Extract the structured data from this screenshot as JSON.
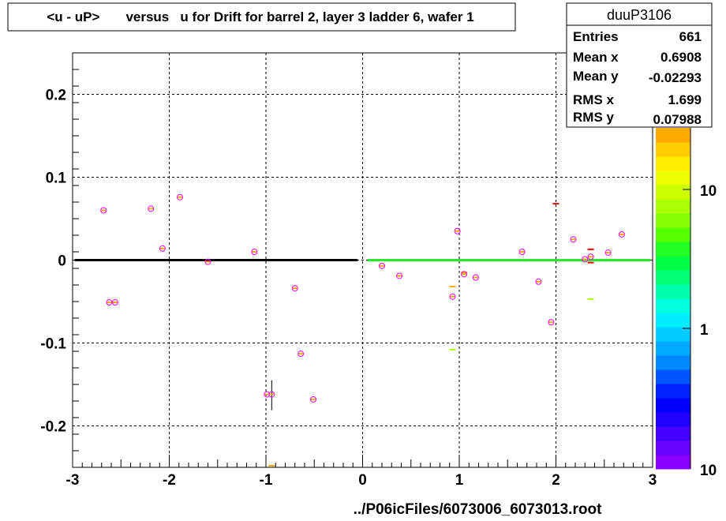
{
  "title": "<u - uP>       versus   u for Drift for barrel 2, layer 3 ladder 6, wafer 1",
  "footer": "../P06icFiles/6073006_6073013.root",
  "stats": {
    "name": "duuP3106",
    "rows": [
      {
        "label": "Entries",
        "value": "661"
      },
      {
        "label": "Mean x",
        "value": "0.6908"
      },
      {
        "label": "Mean y",
        "value": "-0.02293"
      },
      {
        "label": "RMS x",
        "value": "1.699"
      },
      {
        "label": "RMS y",
        "value": "0.07988"
      }
    ]
  },
  "palette": {
    "marker": "#ff00ff",
    "inner": "#ffaa00",
    "profile_left": "#000000",
    "profile_right": "#22ee22"
  },
  "chart_data": {
    "type": "scatter",
    "xlim": [
      -3,
      3
    ],
    "ylim": [
      -0.25,
      0.25
    ],
    "x_ticks": [
      -3,
      -2,
      -1,
      0,
      1,
      2,
      3
    ],
    "x_tick_labels": [
      "-3",
      "-2",
      "-1",
      "0",
      "1",
      "2",
      "3"
    ],
    "y_ticks": [
      -0.2,
      -0.1,
      0,
      0.1,
      0.2
    ],
    "y_tick_labels": [
      "-0.2",
      "-0.1",
      "0",
      "0.1",
      "0.2"
    ],
    "grid": true,
    "colorbar": {
      "colors": [
        "#8800ff",
        "#6600ff",
        "#4400ff",
        "#2200ff",
        "#0000ff",
        "#0022ff",
        "#0055ff",
        "#0088ff",
        "#00aaff",
        "#00ccff",
        "#00eeff",
        "#00ffdd",
        "#00ffaa",
        "#00ff77",
        "#00ff44",
        "#22ff22",
        "#55ff00",
        "#88ff00",
        "#aaff00",
        "#ccff00",
        "#eeff00",
        "#ffee00",
        "#ffcc00",
        "#ffaa00"
      ],
      "tick_labels": [
        "10",
        "1",
        "10"
      ]
    },
    "points": [
      {
        "x": -2.68,
        "y": 0.06
      },
      {
        "x": -2.62,
        "y": -0.051
      },
      {
        "x": -2.56,
        "y": -0.051
      },
      {
        "x": -2.19,
        "y": 0.062
      },
      {
        "x": -2.07,
        "y": 0.014
      },
      {
        "x": -1.89,
        "y": 0.076
      },
      {
        "x": -1.6,
        "y": -0.002
      },
      {
        "x": -1.12,
        "y": 0.01
      },
      {
        "x": -0.99,
        "y": -0.162
      },
      {
        "x": -0.94,
        "y": -0.162
      },
      {
        "x": -0.7,
        "y": -0.034
      },
      {
        "x": -0.64,
        "y": -0.113
      },
      {
        "x": -0.51,
        "y": -0.168
      },
      {
        "x": 0.2,
        "y": -0.007
      },
      {
        "x": 0.38,
        "y": -0.019
      },
      {
        "x": 0.93,
        "y": -0.044
      },
      {
        "x": 0.98,
        "y": 0.035
      },
      {
        "x": 1.05,
        "y": -0.017
      },
      {
        "x": 1.17,
        "y": -0.021
      },
      {
        "x": 1.65,
        "y": 0.01
      },
      {
        "x": 1.82,
        "y": -0.026
      },
      {
        "x": 1.95,
        "y": -0.075
      },
      {
        "x": 2.18,
        "y": 0.025
      },
      {
        "x": 2.3,
        "y": 0.001
      },
      {
        "x": 2.36,
        "y": 0.004
      },
      {
        "x": 2.54,
        "y": 0.009
      },
      {
        "x": 2.68,
        "y": 0.031
      }
    ],
    "dashes": [
      {
        "x": -0.94,
        "y": -0.248,
        "color": "#ffaa00"
      },
      {
        "x": 0.93,
        "y": -0.032,
        "color": "#ffaa00"
      },
      {
        "x": 0.93,
        "y": -0.108,
        "color": "#aaff00"
      },
      {
        "x": 1.05,
        "y": -0.015,
        "color": "#ffaa00"
      },
      {
        "x": 2.0,
        "y": 0.068,
        "color": "#ff0000"
      },
      {
        "x": 2.36,
        "y": 0.013,
        "color": "#ff0000"
      },
      {
        "x": 2.36,
        "y": -0.003,
        "color": "#ff0000"
      },
      {
        "x": 2.36,
        "y": -0.047,
        "color": "#aaff00"
      }
    ],
    "error_bars": [
      {
        "x": -0.94,
        "y0": -0.181,
        "y1": -0.145
      }
    ],
    "profile": [
      {
        "x0": -2.98,
        "x1": -0.05,
        "y": 0.0,
        "color": "#000000"
      },
      {
        "x0": 0.05,
        "x1": 2.98,
        "y": 0.0,
        "color": "#22ee22"
      }
    ]
  }
}
